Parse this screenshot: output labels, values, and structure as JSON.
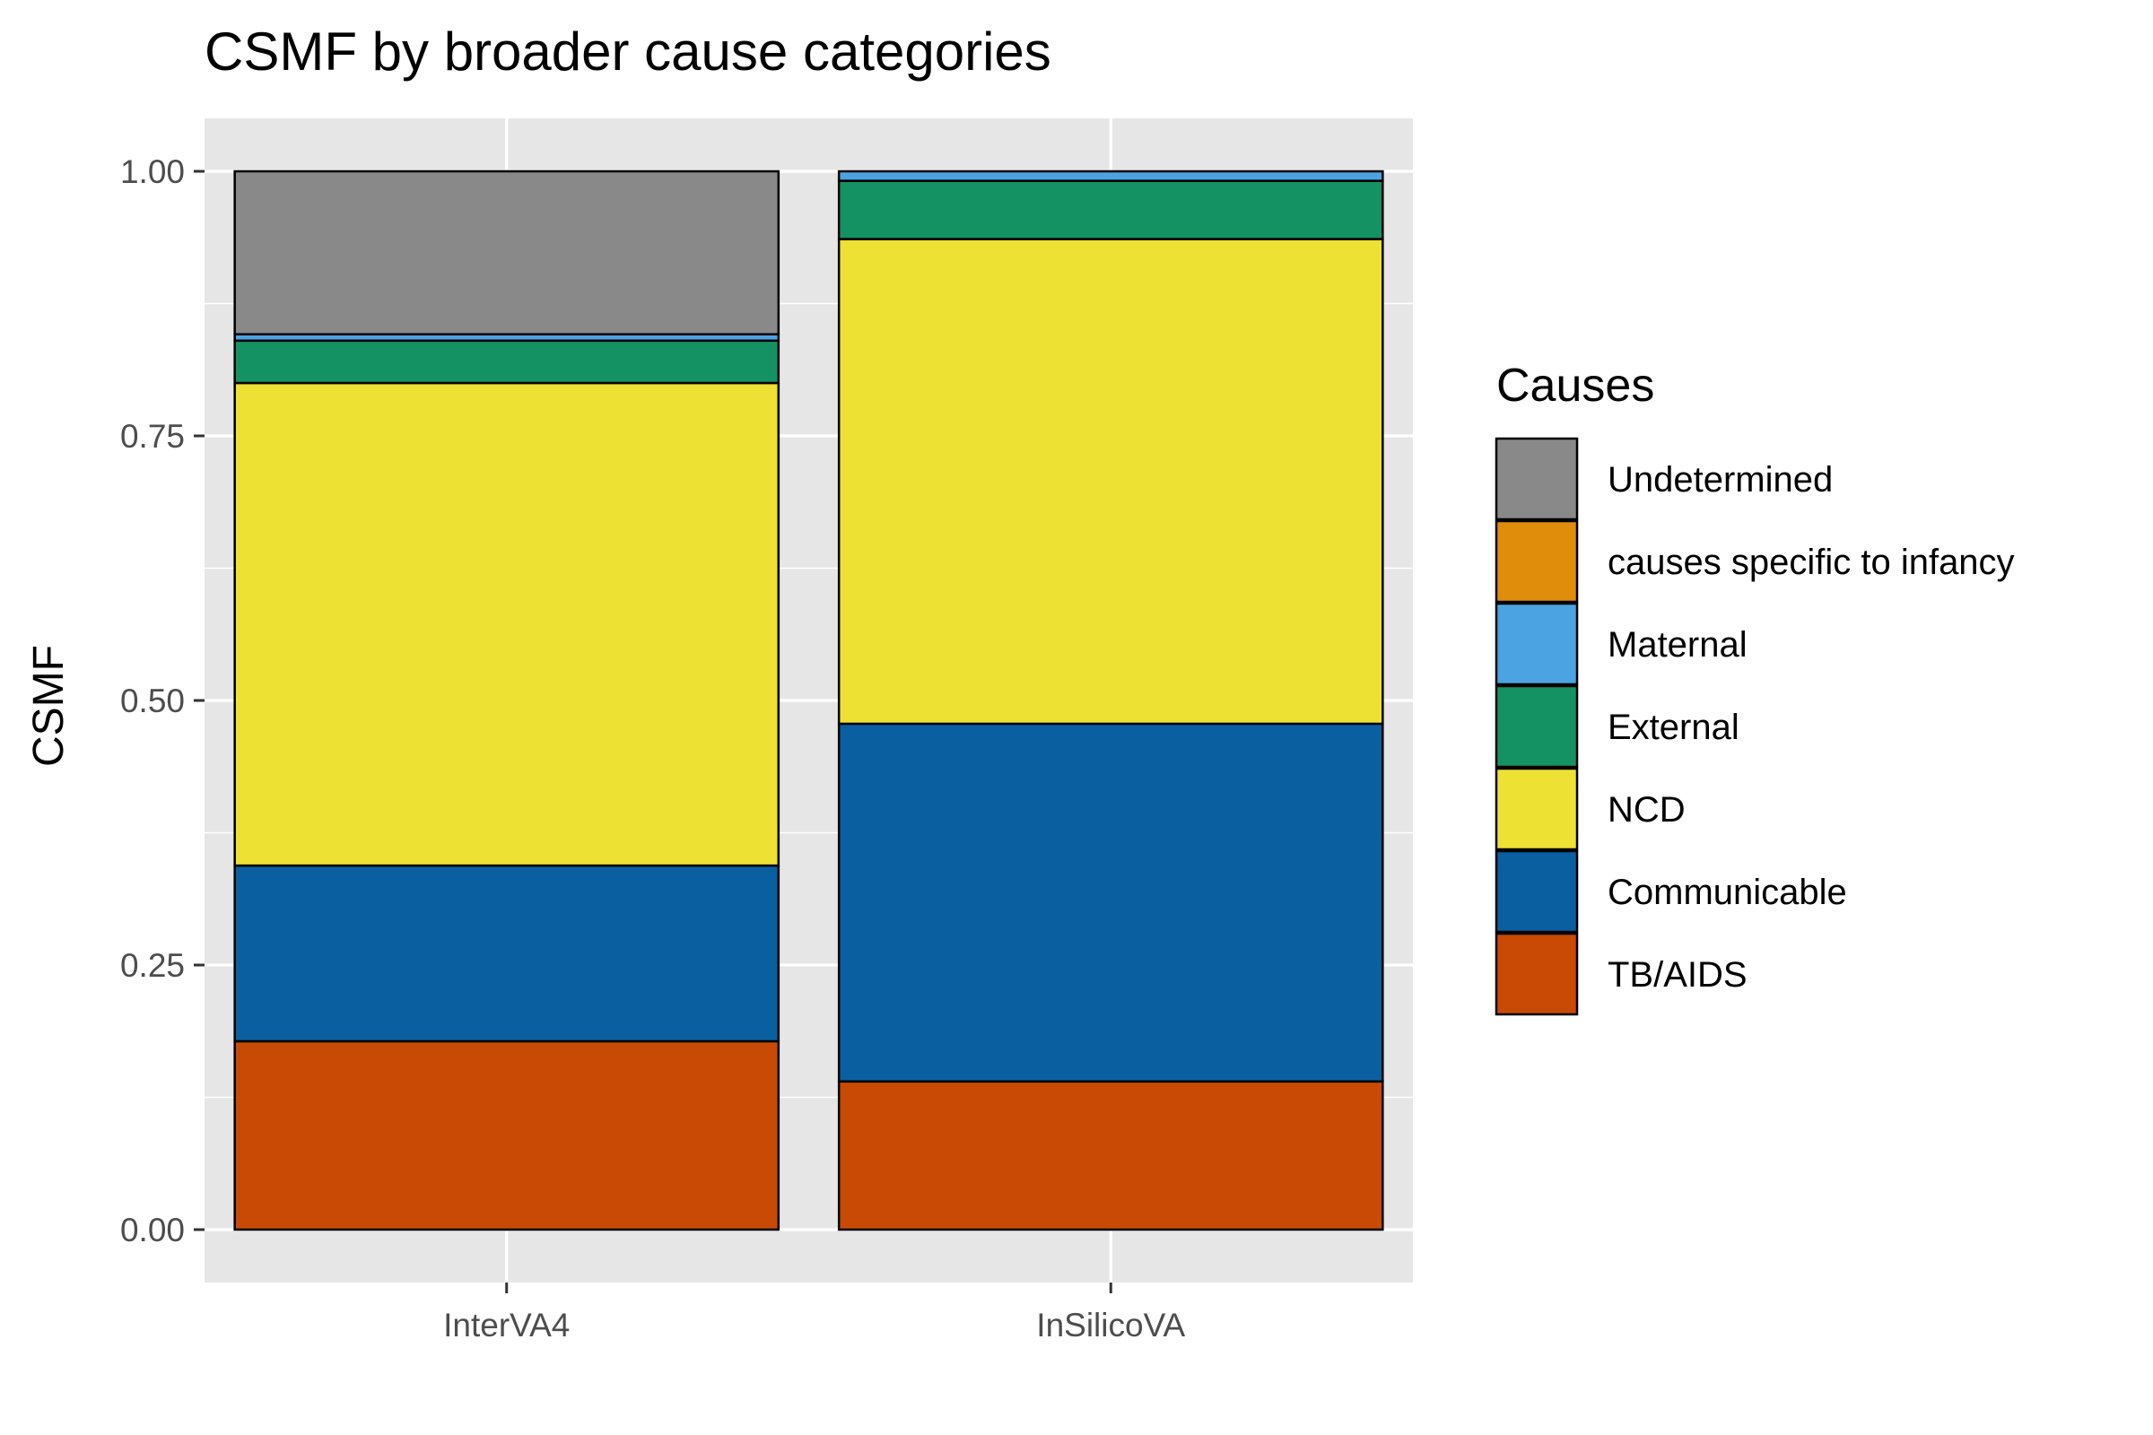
{
  "chart_data": {
    "type": "bar",
    "stacked": true,
    "title": "CSMF by broader cause categories",
    "xlabel": "",
    "ylabel": "CSMF",
    "ylim": [
      -0.05,
      1.05
    ],
    "yticks": [
      "0.00",
      "0.25",
      "0.50",
      "0.75",
      "1.00"
    ],
    "ytick_values": [
      0,
      0.25,
      0.5,
      0.75,
      1.0
    ],
    "grid": true,
    "legend_position": "right",
    "legend_title": "Causes",
    "categories": [
      "InterVA4",
      "InSilicoVA"
    ],
    "series": [
      {
        "name": "TB/AIDS",
        "color": "#C84A05",
        "values": [
          0.178,
          0.14
        ]
      },
      {
        "name": "Communicable",
        "color": "#0A5FA1",
        "values": [
          0.166,
          0.338
        ]
      },
      {
        "name": "NCD",
        "color": "#EDE134",
        "values": [
          0.456,
          0.458
        ]
      },
      {
        "name": "External",
        "color": "#159263",
        "values": [
          0.04,
          0.055
        ]
      },
      {
        "name": "Maternal",
        "color": "#4BA4E1",
        "values": [
          0.006,
          0.009
        ]
      },
      {
        "name": "causes specific to infancy",
        "color": "#DF8D0A",
        "values": [
          0.0,
          0.0
        ]
      },
      {
        "name": "Undetermined",
        "color": "#898989",
        "values": [
          0.154,
          0.0
        ]
      }
    ],
    "legend_order": [
      "Undetermined",
      "causes specific to infancy",
      "Maternal",
      "External",
      "NCD",
      "Communicable",
      "TB/AIDS"
    ]
  }
}
